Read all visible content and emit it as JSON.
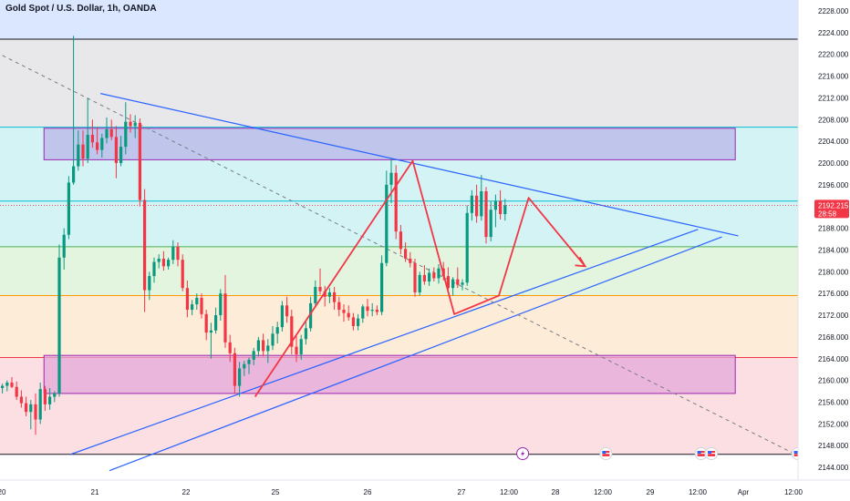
{
  "header": {
    "title": "Gold Spot / U.S. Dollar, 1h, OANDA"
  },
  "colors": {
    "up": "#089981",
    "down": "#f23645",
    "zone_purple": "#9c27b0",
    "trend_blue": "#2962ff",
    "projection_red": "#f23645",
    "gridline_green": "#4caf50",
    "gridline_orange": "#ff9800"
  },
  "chart_data": {
    "type": "candlestick",
    "symbol": "Gold Spot / U.S. Dollar",
    "interval": "1h",
    "source": "OANDA",
    "ylim": [
      2142,
      2230
    ],
    "y_ticks": [
      2144,
      2148,
      2152,
      2156,
      2160,
      2164,
      2168,
      2172,
      2176,
      2180,
      2184,
      2188,
      2192,
      2196,
      2200,
      2204,
      2208,
      2212,
      2216,
      2220,
      2224,
      2228
    ],
    "y_tick_labels": [
      "2144.000",
      "2148.000",
      "2152.000",
      "2156.000",
      "2160.000",
      "2164.000",
      "2168.000",
      "2172.000",
      "2176.000",
      "2180.000",
      "2184.000",
      "2188.000",
      "2192.000",
      "2196.000",
      "2200.000",
      "2204.000",
      "2208.000",
      "2212.000",
      "2216.000",
      "2220.000",
      "2224.000",
      "2228.000"
    ],
    "x_ticks": [
      "20",
      "21",
      "22",
      "25",
      "26",
      "27",
      "12:00",
      "28",
      "12:00",
      "29",
      "12:00",
      "Apr",
      "12:00"
    ],
    "last_price": "2192.215",
    "countdown": "28:58",
    "horizontal_levels": [
      {
        "price": 2222.8,
        "color": "#131722"
      },
      {
        "price": 2206.6,
        "color": "#00bcd4"
      },
      {
        "price": 2193.0,
        "color": "#00bcd4"
      },
      {
        "price": 2184.6,
        "color": "#4caf50"
      },
      {
        "price": 2175.6,
        "color": "#ff9800"
      },
      {
        "price": 2164.2,
        "color": "#f23645"
      },
      {
        "price": 2146.4,
        "color": "#131722"
      }
    ],
    "background_bands": [
      {
        "from": 2222.8,
        "to": 2232,
        "color": "#dbe6ff"
      },
      {
        "from": 2206.6,
        "to": 2222.8,
        "color": "#e8e8ea"
      },
      {
        "from": 2184.6,
        "to": 2206.6,
        "color": "#d4f3f4"
      },
      {
        "from": 2175.6,
        "to": 2184.6,
        "color": "#e4f5df"
      },
      {
        "from": 2164.2,
        "to": 2175.6,
        "color": "#fdecd7"
      },
      {
        "from": 2146.4,
        "to": 2164.2,
        "color": "#fcdfe2"
      }
    ],
    "zones": [
      {
        "t_from": 2.8,
        "t_to": 49.3,
        "price_from": 2200.6,
        "price_to": 2206.4,
        "color": "#b9b6e8"
      },
      {
        "t_from": 2.8,
        "t_to": 49.3,
        "price_from": 2157.6,
        "price_to": 2164.6,
        "color": "#e5a8d9"
      }
    ],
    "candles": [
      [
        2158.6,
        2159.4,
        2157.6,
        2159.0
      ],
      [
        2159.0,
        2160.0,
        2158.0,
        2159.6
      ],
      [
        2159.6,
        2160.6,
        2158.6,
        2158.8
      ],
      [
        2158.8,
        2159.8,
        2156.4,
        2157.0
      ],
      [
        2157.0,
        2158.2,
        2155.0,
        2155.8
      ],
      [
        2155.8,
        2157.0,
        2153.4,
        2154.2
      ],
      [
        2154.2,
        2156.4,
        2151.0,
        2155.6
      ],
      [
        2155.6,
        2157.6,
        2150.0,
        2152.8
      ],
      [
        2152.8,
        2159.6,
        2152.0,
        2158.4
      ],
      [
        2158.4,
        2159.0,
        2154.4,
        2155.6
      ],
      [
        2155.6,
        2158.6,
        2154.6,
        2157.0
      ],
      [
        2157.0,
        2158.0,
        2156.0,
        2157.6
      ],
      [
        2157.6,
        2185.0,
        2157.0,
        2182.6
      ],
      [
        2182.6,
        2188.0,
        2180.4,
        2186.8
      ],
      [
        2186.8,
        2197.6,
        2186.0,
        2196.4
      ],
      [
        2196.4,
        2223.4,
        2196.0,
        2199.4
      ],
      [
        2199.4,
        2206.0,
        2198.6,
        2203.4
      ],
      [
        2203.4,
        2206.0,
        2199.4,
        2200.8
      ],
      [
        2200.8,
        2212.0,
        2200.0,
        2205.2
      ],
      [
        2205.2,
        2208.0,
        2202.8,
        2203.8
      ],
      [
        2203.8,
        2206.6,
        2201.6,
        2202.4
      ],
      [
        2202.4,
        2205.4,
        2201.0,
        2204.6
      ],
      [
        2204.6,
        2208.4,
        2203.6,
        2206.2
      ],
      [
        2206.2,
        2208.0,
        2204.2,
        2204.8
      ],
      [
        2204.8,
        2206.8,
        2197.2,
        2200.0
      ],
      [
        2200.0,
        2205.0,
        2199.4,
        2203.0
      ],
      [
        2203.0,
        2211.2,
        2201.6,
        2207.6
      ],
      [
        2207.6,
        2209.0,
        2205.6,
        2206.8
      ],
      [
        2206.8,
        2208.8,
        2204.6,
        2207.4
      ],
      [
        2207.4,
        2208.2,
        2192.0,
        2193.2
      ],
      [
        2193.2,
        2195.2,
        2172.6,
        2176.6
      ],
      [
        2176.6,
        2180.0,
        2174.8,
        2179.2
      ],
      [
        2179.2,
        2182.6,
        2178.0,
        2181.8
      ],
      [
        2181.8,
        2183.2,
        2180.6,
        2182.4
      ],
      [
        2182.4,
        2183.8,
        2180.2,
        2181.0
      ],
      [
        2181.0,
        2182.6,
        2180.4,
        2182.2
      ],
      [
        2182.2,
        2185.8,
        2181.4,
        2184.6
      ],
      [
        2184.6,
        2185.4,
        2181.0,
        2182.2
      ],
      [
        2182.2,
        2183.2,
        2176.4,
        2177.0
      ],
      [
        2177.0,
        2178.4,
        2171.6,
        2173.0
      ],
      [
        2173.0,
        2174.8,
        2172.0,
        2174.0
      ],
      [
        2174.0,
        2176.0,
        2173.0,
        2175.2
      ],
      [
        2175.2,
        2176.0,
        2171.4,
        2172.2
      ],
      [
        2172.2,
        2173.0,
        2167.4,
        2168.8
      ],
      [
        2168.8,
        2170.6,
        2164.0,
        2169.2
      ],
      [
        2169.2,
        2173.4,
        2168.6,
        2172.0
      ],
      [
        2172.0,
        2176.8,
        2171.0,
        2176.0
      ],
      [
        2176.0,
        2179.4,
        2166.0,
        2167.0
      ],
      [
        2167.0,
        2168.4,
        2163.4,
        2165.0
      ],
      [
        2165.0,
        2166.0,
        2157.6,
        2159.0
      ],
      [
        2159.0,
        2163.4,
        2157.0,
        2162.2
      ],
      [
        2162.2,
        2163.6,
        2160.8,
        2163.0
      ],
      [
        2163.0,
        2164.2,
        2161.2,
        2163.8
      ],
      [
        2163.8,
        2166.0,
        2162.8,
        2165.4
      ],
      [
        2165.4,
        2168.0,
        2164.4,
        2167.4
      ],
      [
        2167.4,
        2168.6,
        2164.4,
        2165.4
      ],
      [
        2165.4,
        2167.6,
        2163.2,
        2166.4
      ],
      [
        2166.4,
        2170.0,
        2165.6,
        2168.6
      ],
      [
        2168.6,
        2170.8,
        2166.8,
        2169.8
      ],
      [
        2169.8,
        2174.6,
        2169.0,
        2173.8
      ],
      [
        2173.8,
        2175.4,
        2170.6,
        2171.8
      ],
      [
        2171.8,
        2173.0,
        2164.8,
        2166.2
      ],
      [
        2166.2,
        2168.2,
        2163.4,
        2164.8
      ],
      [
        2164.8,
        2168.4,
        2163.8,
        2167.6
      ],
      [
        2167.6,
        2171.0,
        2166.6,
        2169.6
      ],
      [
        2169.6,
        2175.4,
        2169.0,
        2174.2
      ],
      [
        2174.2,
        2178.4,
        2173.4,
        2177.2
      ],
      [
        2177.2,
        2180.6,
        2175.8,
        2176.4
      ],
      [
        2176.4,
        2177.4,
        2173.6,
        2175.4
      ],
      [
        2175.4,
        2177.0,
        2174.2,
        2176.2
      ],
      [
        2176.2,
        2177.2,
        2173.0,
        2174.4
      ],
      [
        2174.4,
        2175.4,
        2171.8,
        2173.0
      ],
      [
        2173.0,
        2174.0,
        2170.8,
        2172.4
      ],
      [
        2172.4,
        2173.8,
        2171.0,
        2171.6
      ],
      [
        2171.6,
        2172.4,
        2169.2,
        2170.0
      ],
      [
        2170.0,
        2172.2,
        2169.2,
        2171.4
      ],
      [
        2171.4,
        2174.0,
        2170.6,
        2173.6
      ],
      [
        2173.6,
        2175.0,
        2171.8,
        2172.8
      ],
      [
        2172.8,
        2174.2,
        2171.8,
        2173.0
      ],
      [
        2173.0,
        2173.8,
        2172.0,
        2172.6
      ],
      [
        2172.6,
        2183.0,
        2172.0,
        2181.6
      ],
      [
        2181.6,
        2198.6,
        2181.0,
        2196.0
      ],
      [
        2196.0,
        2200.8,
        2192.6,
        2198.2
      ],
      [
        2198.2,
        2199.6,
        2186.0,
        2187.4
      ],
      [
        2187.4,
        2188.6,
        2183.2,
        2184.2
      ],
      [
        2184.2,
        2185.4,
        2181.8,
        2182.4
      ],
      [
        2182.4,
        2183.6,
        2180.8,
        2181.6
      ],
      [
        2181.6,
        2182.4,
        2175.4,
        2176.2
      ],
      [
        2176.2,
        2180.0,
        2175.6,
        2179.4
      ],
      [
        2179.4,
        2181.2,
        2177.6,
        2178.2
      ],
      [
        2178.2,
        2180.6,
        2177.4,
        2179.8
      ],
      [
        2179.8,
        2180.8,
        2178.2,
        2178.8
      ],
      [
        2178.8,
        2181.4,
        2177.8,
        2180.6
      ],
      [
        2180.6,
        2181.8,
        2178.4,
        2179.2
      ],
      [
        2179.2,
        2180.8,
        2176.2,
        2177.0
      ],
      [
        2177.0,
        2179.0,
        2175.6,
        2178.6
      ],
      [
        2178.6,
        2180.8,
        2177.0,
        2177.6
      ],
      [
        2177.6,
        2178.6,
        2176.6,
        2178.0
      ],
      [
        2178.0,
        2192.2,
        2177.4,
        2190.8
      ],
      [
        2190.8,
        2195.0,
        2189.4,
        2194.0
      ],
      [
        2194.0,
        2196.0,
        2189.0,
        2190.2
      ],
      [
        2190.2,
        2197.8,
        2189.4,
        2194.8
      ],
      [
        2194.8,
        2195.6,
        2185.2,
        2186.4
      ],
      [
        2186.4,
        2193.0,
        2185.6,
        2191.4
      ],
      [
        2191.4,
        2194.2,
        2188.2,
        2193.0
      ],
      [
        2193.0,
        2195.0,
        2189.6,
        2190.6
      ],
      [
        2190.6,
        2193.4,
        2189.4,
        2192.215
      ]
    ],
    "trendlines": [
      {
        "name": "triangle-upper",
        "from": [
          6.6,
          2212.8
        ],
        "to": [
          49.5,
          2186.6
        ],
        "color": "#2962ff"
      },
      {
        "name": "triangle-lower",
        "from": [
          4.6,
          2146.4
        ],
        "to": [
          46.8,
          2187.8
        ],
        "color": "#2962ff"
      },
      {
        "name": "channel-lower",
        "from": [
          7.2,
          2143.4
        ],
        "to": [
          48.4,
          2186.4
        ],
        "color": "#2962ff"
      },
      {
        "name": "dashed-diagonal",
        "from": [
          0.0,
          2219.8
        ],
        "to": [
          53.2,
          2146.6
        ],
        "color": "#787b86",
        "dashed": true
      }
    ],
    "projection_path": [
      [
        17.0,
        2157.0
      ],
      [
        27.6,
        2200.4
      ],
      [
        30.4,
        2172.2
      ],
      [
        33.4,
        2175.6
      ],
      [
        35.4,
        2193.6
      ],
      [
        39.2,
        2181.0
      ]
    ],
    "event_markers": [
      {
        "t": 35.0,
        "icon": "lightning"
      },
      {
        "t": 40.6,
        "icon": "us-flag"
      },
      {
        "t": 47.0,
        "icon": "us-flag"
      },
      {
        "t": 47.7,
        "icon": "us-flag"
      },
      {
        "t": 53.5,
        "icon": "us-flag"
      }
    ]
  }
}
